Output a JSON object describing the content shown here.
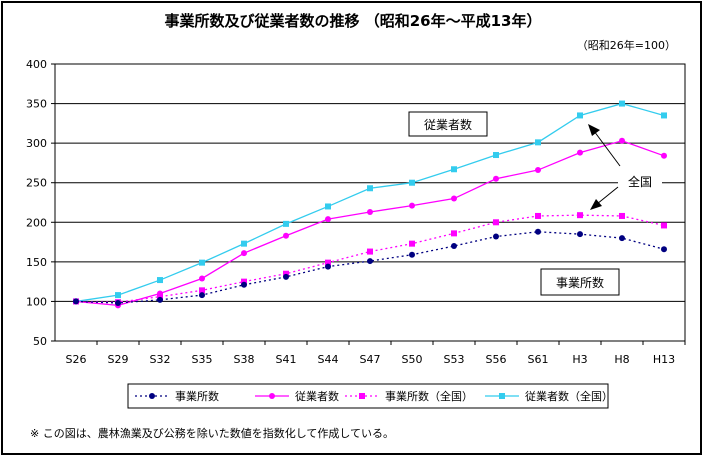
{
  "chart_data": {
    "type": "line",
    "title": "事業所数及び従業者数の推移 （昭和26年～平成13年）",
    "subtitle": "（昭和26年=100）",
    "categories": [
      "S26",
      "S29",
      "S32",
      "S35",
      "S38",
      "S41",
      "S44",
      "S47",
      "S50",
      "S53",
      "S56",
      "S61",
      "H3",
      "H8",
      "H13"
    ],
    "ylim": [
      50,
      400
    ],
    "yticks": [
      50,
      100,
      150,
      200,
      250,
      300,
      350,
      400
    ],
    "grid": true,
    "legend_position": "bottom",
    "series": [
      {
        "name": "事業所数",
        "color": "#000080",
        "line": "dotted",
        "marker": "circle",
        "values": [
          100,
          98,
          102,
          108,
          121,
          131,
          144,
          151,
          159,
          170,
          182,
          188,
          185,
          180,
          166
        ]
      },
      {
        "name": "従業者数",
        "color": "#ff00ff",
        "line": "solid",
        "marker": "circle",
        "values": [
          100,
          95,
          110,
          129,
          161,
          183,
          204,
          213,
          221,
          230,
          255,
          266,
          288,
          303,
          284
        ]
      },
      {
        "name": "事業所数（全国）",
        "color": "#ff00ff",
        "line": "dotted",
        "marker": "square",
        "values": [
          100,
          99,
          106,
          114,
          125,
          135,
          149,
          163,
          173,
          186,
          200,
          208,
          209,
          208,
          196
        ]
      },
      {
        "name": "従業者数（全国）",
        "color": "#33ccee",
        "line": "solid",
        "marker": "square",
        "values": [
          100,
          108,
          127,
          149,
          173,
          198,
          220,
          243,
          250,
          267,
          285,
          301,
          335,
          350,
          335
        ]
      }
    ],
    "annotations": {
      "employees_box": "従業者数",
      "establishments_box": "事業所数",
      "national_label": "全国"
    },
    "footnote": "※ この図は、農林漁業及び公務を除いた数値を指数化して作成している。"
  }
}
